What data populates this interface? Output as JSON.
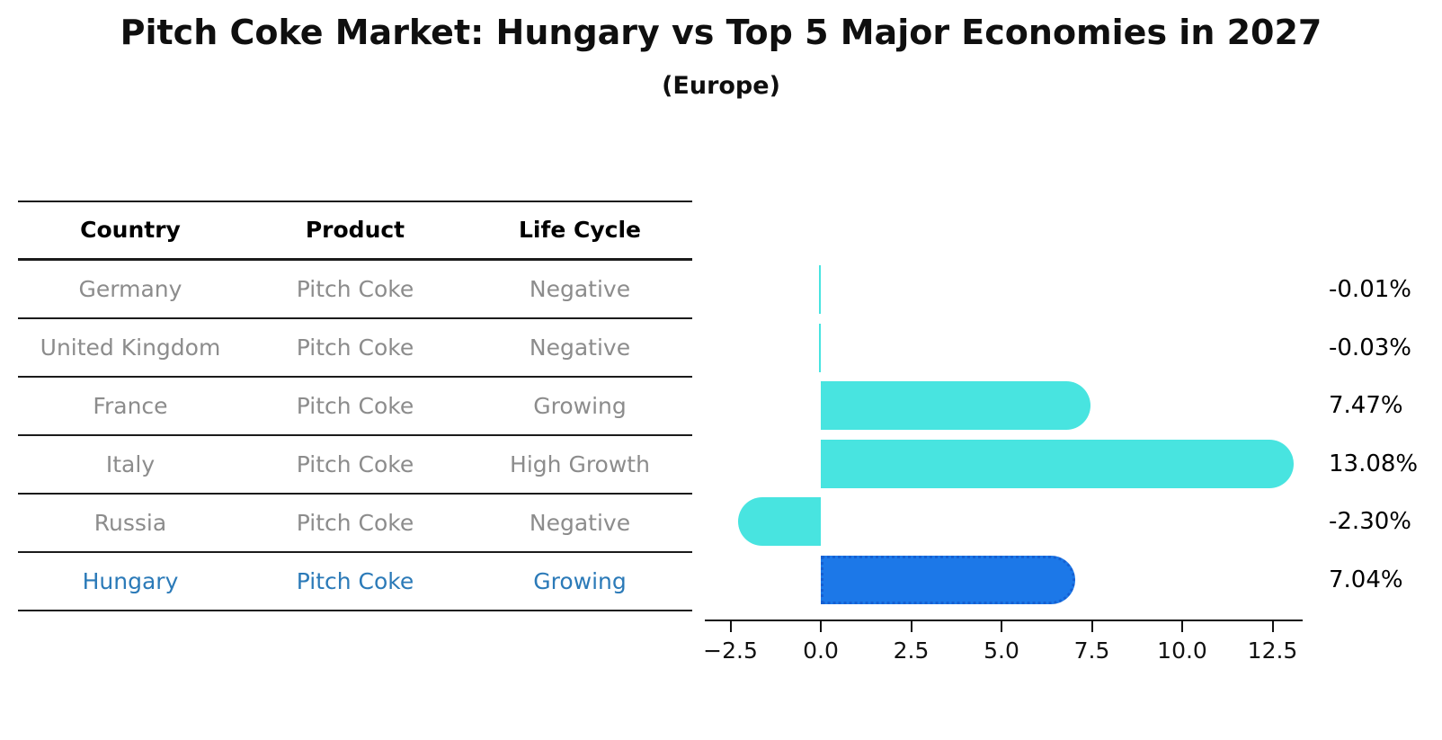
{
  "title": "Pitch Coke Market: Hungary vs Top 5 Major Economies in 2027",
  "subtitle": "(Europe)",
  "table": {
    "headers": [
      "Country",
      "Product",
      "Life Cycle"
    ],
    "rows": [
      {
        "country": "Germany",
        "product": "Pitch Coke",
        "life_cycle": "Negative",
        "highlight": false
      },
      {
        "country": "United Kingdom",
        "product": "Pitch Coke",
        "life_cycle": "Negative",
        "highlight": false
      },
      {
        "country": "France",
        "product": "Pitch Coke",
        "life_cycle": "Growing",
        "highlight": false
      },
      {
        "country": "Italy",
        "product": "Pitch Coke",
        "life_cycle": "High Growth",
        "highlight": false
      },
      {
        "country": "Russia",
        "product": "Pitch Coke",
        "life_cycle": "Negative",
        "highlight": false
      },
      {
        "country": "Hungary",
        "product": "Pitch Coke",
        "life_cycle": "Growing",
        "highlight": true
      }
    ]
  },
  "chart_data": {
    "type": "bar",
    "orientation": "horizontal",
    "title": "Pitch Coke Market: Hungary vs Top 5 Major Economies in 2027",
    "subtitle": "(Europe)",
    "categories": [
      "Germany",
      "United Kingdom",
      "France",
      "Italy",
      "Russia",
      "Hungary"
    ],
    "values": [
      -0.01,
      -0.03,
      7.47,
      13.08,
      -2.3,
      7.04
    ],
    "value_labels": [
      "-0.01%",
      "-0.03%",
      "7.47%",
      "13.08%",
      "-2.30%",
      "7.04%"
    ],
    "highlight_category": "Hungary",
    "xlabel": "",
    "ylabel": "",
    "xlim": [
      -3.2,
      13.3
    ],
    "xtick_values": [
      -2.5,
      0,
      2.5,
      5,
      7.5,
      10,
      12.5
    ],
    "xtick_labels": [
      "−2.5",
      "0.0",
      "2.5",
      "5.0",
      "7.5",
      "10.0",
      "12.5"
    ],
    "grid": false,
    "legend": "none",
    "colors": {
      "default_bar": "#48e4e0",
      "highlight_bar": "#1c78e8",
      "highlight_edge": "#1560d2",
      "highlight_text": "#2b7ab8",
      "table_text": "#8c8c8c",
      "axis": "#111111"
    }
  }
}
